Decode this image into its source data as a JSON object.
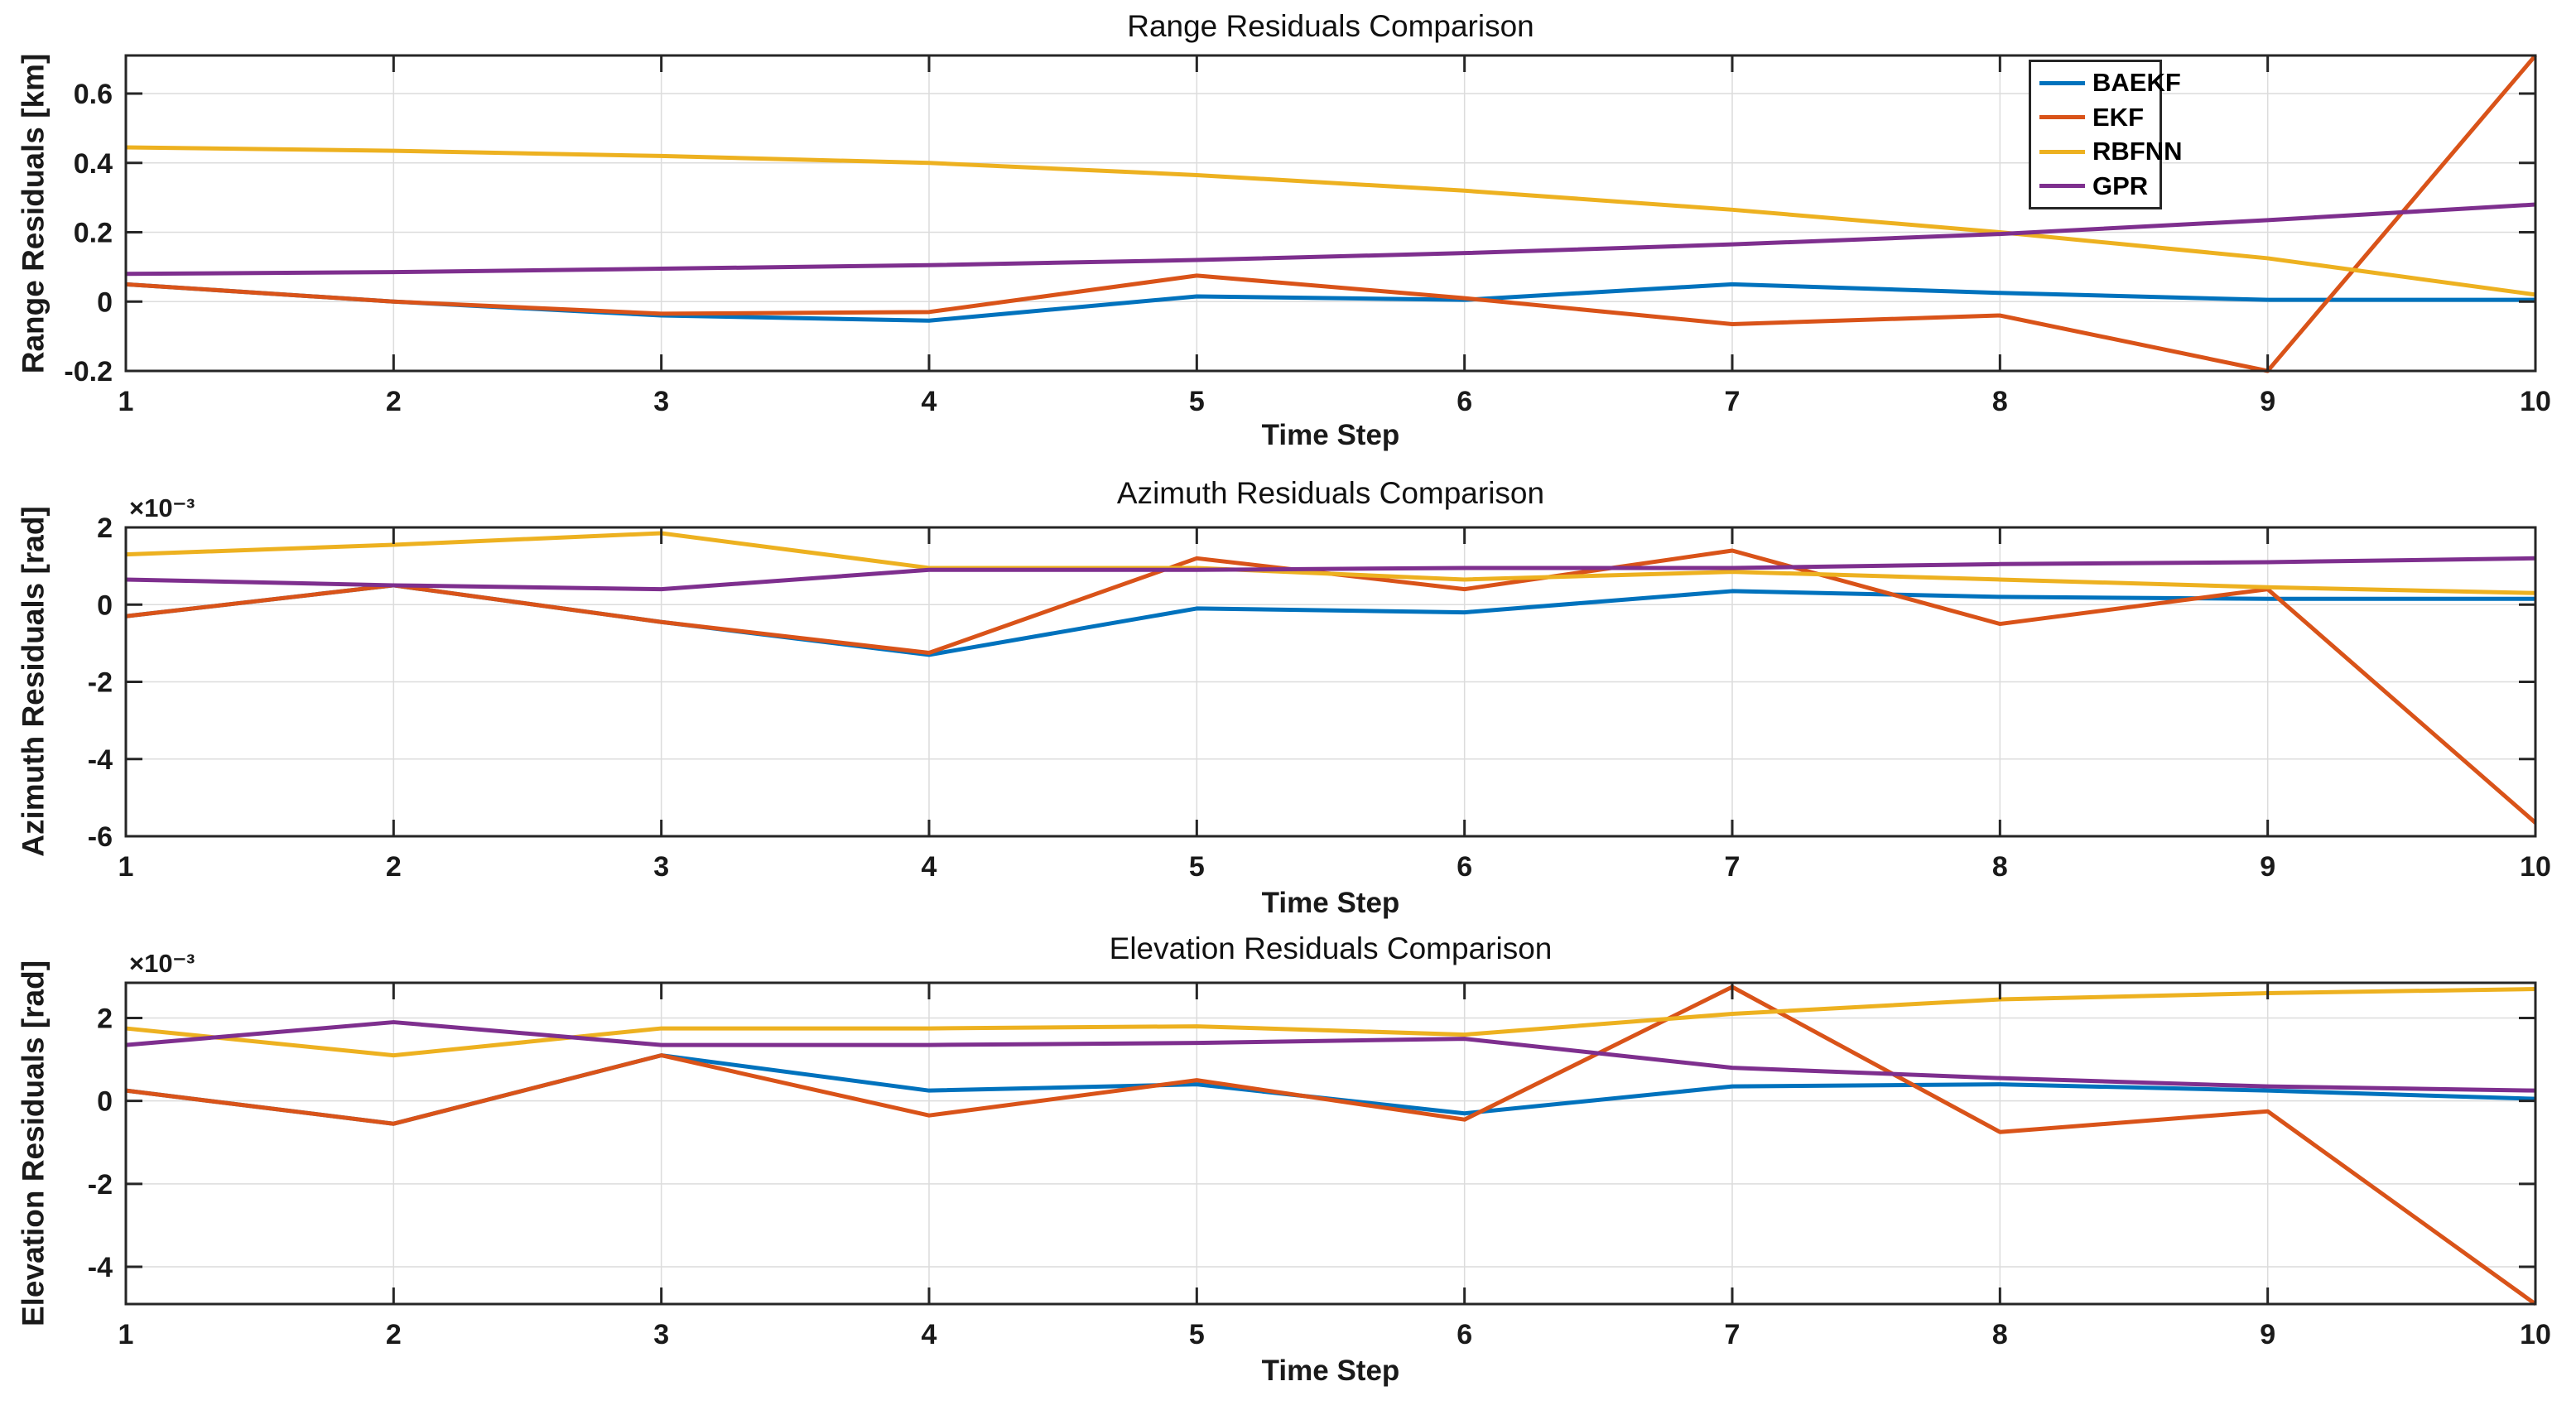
{
  "figure": {
    "background": "#ffffff",
    "axis_color": "#262626",
    "grid_color": "#dcdcdc",
    "tick_label_color": "#1a1a1a"
  },
  "legend": {
    "position": "top-right-subplot-1",
    "items": [
      {
        "label": "BAEKF",
        "color": "#0072BD"
      },
      {
        "label": "EKF",
        "color": "#D95319"
      },
      {
        "label": "RBFNN",
        "color": "#EDB120"
      },
      {
        "label": "GPR",
        "color": "#7E2F8E"
      }
    ]
  },
  "chart_data": [
    {
      "type": "line",
      "title": "Range Residuals Comparison",
      "xlabel": "Time Step",
      "ylabel": "Range Residuals [km]",
      "unit_multiplier": "",
      "grid": true,
      "x": [
        1,
        2,
        3,
        4,
        5,
        6,
        7,
        8,
        9,
        10
      ],
      "xticks": [
        1,
        2,
        3,
        4,
        5,
        6,
        7,
        8,
        9,
        10
      ],
      "xlim": [
        1,
        10
      ],
      "ylim": [
        -0.2,
        0.71
      ],
      "yticks": [
        0.6,
        0.4,
        0.2,
        0,
        -0.2
      ],
      "ytick_labels": [
        "0.6",
        "0.4",
        "0.2",
        "0",
        "-0.2"
      ],
      "series": [
        {
          "name": "BAEKF",
          "color": "#0072BD",
          "values": [
            0.05,
            0.0,
            -0.04,
            -0.055,
            0.015,
            0.005,
            0.05,
            0.025,
            0.005,
            0.005
          ]
        },
        {
          "name": "EKF",
          "color": "#D95319",
          "values": [
            0.05,
            0.0,
            -0.035,
            -0.03,
            0.075,
            0.01,
            -0.065,
            -0.04,
            -0.2,
            0.71
          ]
        },
        {
          "name": "RBFNN",
          "color": "#EDB120",
          "values": [
            0.445,
            0.435,
            0.42,
            0.4,
            0.365,
            0.32,
            0.265,
            0.2,
            0.125,
            0.02
          ]
        },
        {
          "name": "GPR",
          "color": "#7E2F8E",
          "values": [
            0.08,
            0.085,
            0.095,
            0.105,
            0.12,
            0.14,
            0.165,
            0.195,
            0.235,
            0.28
          ]
        }
      ]
    },
    {
      "type": "line",
      "title": "Azimuth Residuals Comparison",
      "xlabel": "Time Step",
      "ylabel": "Azimuth Residuals [rad]",
      "unit_multiplier": "×10⁻³",
      "grid": true,
      "x": [
        1,
        2,
        3,
        4,
        5,
        6,
        7,
        8,
        9,
        10
      ],
      "xticks": [
        1,
        2,
        3,
        4,
        5,
        6,
        7,
        8,
        9,
        10
      ],
      "xlim": [
        1,
        10
      ],
      "ylim": [
        -6,
        2
      ],
      "yticks": [
        2,
        0,
        -2,
        -4,
        -6
      ],
      "ytick_labels": [
        "2",
        "0",
        "-2",
        "-4",
        "-6"
      ],
      "series": [
        {
          "name": "BAEKF",
          "color": "#0072BD",
          "values": [
            -0.3,
            0.5,
            -0.45,
            -1.3,
            -0.1,
            -0.2,
            0.35,
            0.2,
            0.15,
            0.15
          ]
        },
        {
          "name": "EKF",
          "color": "#D95319",
          "values": [
            -0.3,
            0.5,
            -0.45,
            -1.25,
            1.2,
            0.4,
            1.4,
            -0.5,
            0.4,
            -5.65
          ]
        },
        {
          "name": "RBFNN",
          "color": "#EDB120",
          "values": [
            1.3,
            1.55,
            1.85,
            0.95,
            0.95,
            0.65,
            0.85,
            0.65,
            0.45,
            0.3
          ]
        },
        {
          "name": "GPR",
          "color": "#7E2F8E",
          "values": [
            0.65,
            0.5,
            0.4,
            0.9,
            0.9,
            0.95,
            0.95,
            1.05,
            1.1,
            1.2
          ]
        }
      ]
    },
    {
      "type": "line",
      "title": "Elevation Residuals Comparison",
      "xlabel": "Time Step",
      "ylabel": "Elevation Residuals [rad]",
      "unit_multiplier": "×10⁻³",
      "grid": true,
      "x": [
        1,
        2,
        3,
        4,
        5,
        6,
        7,
        8,
        9,
        10
      ],
      "xticks": [
        1,
        2,
        3,
        4,
        5,
        6,
        7,
        8,
        9,
        10
      ],
      "xlim": [
        1,
        10
      ],
      "ylim": [
        -4.9,
        2.85
      ],
      "yticks": [
        2,
        0,
        -2,
        -4
      ],
      "ytick_labels": [
        "2",
        "0",
        "-2",
        "-4"
      ],
      "series": [
        {
          "name": "BAEKF",
          "color": "#0072BD",
          "values": [
            0.25,
            -0.55,
            1.1,
            0.25,
            0.4,
            -0.3,
            0.35,
            0.4,
            0.25,
            0.05
          ]
        },
        {
          "name": "EKF",
          "color": "#D95319",
          "values": [
            0.25,
            -0.55,
            1.1,
            -0.35,
            0.5,
            -0.45,
            2.75,
            -0.75,
            -0.25,
            -4.9
          ]
        },
        {
          "name": "RBFNN",
          "color": "#EDB120",
          "values": [
            1.75,
            1.1,
            1.75,
            1.75,
            1.8,
            1.6,
            2.1,
            2.45,
            2.6,
            2.7
          ]
        },
        {
          "name": "GPR",
          "color": "#7E2F8E",
          "values": [
            1.35,
            1.9,
            1.35,
            1.35,
            1.4,
            1.5,
            0.8,
            0.55,
            0.35,
            0.25
          ]
        }
      ]
    }
  ]
}
